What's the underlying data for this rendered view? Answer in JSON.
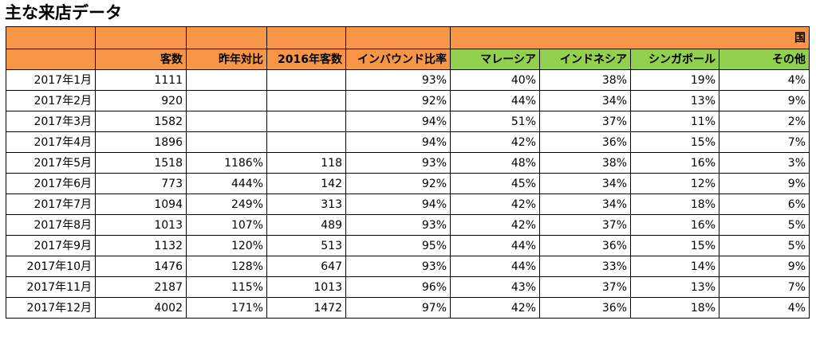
{
  "title": "主な来店データ",
  "colors": {
    "header_orange": "#f79646",
    "header_green": "#92d050"
  },
  "header": {
    "country_group": "国",
    "columns": [
      "",
      "客数",
      "昨年対比",
      "2016年客数",
      "インバウンド比率"
    ],
    "countries": [
      "マレーシア",
      "インドネシア",
      "シンガポール",
      "その他"
    ]
  },
  "rows": [
    [
      "2017年1月",
      "1111",
      "",
      "",
      "93%",
      "40%",
      "38%",
      "19%",
      "4%"
    ],
    [
      "2017年2月",
      "920",
      "",
      "",
      "92%",
      "44%",
      "34%",
      "13%",
      "9%"
    ],
    [
      "2017年3月",
      "1582",
      "",
      "",
      "94%",
      "51%",
      "37%",
      "11%",
      "2%"
    ],
    [
      "2017年4月",
      "1896",
      "",
      "",
      "94%",
      "42%",
      "36%",
      "15%",
      "7%"
    ],
    [
      "2017年5月",
      "1518",
      "1186%",
      "118",
      "93%",
      "48%",
      "38%",
      "16%",
      "3%"
    ],
    [
      "2017年6月",
      "773",
      "444%",
      "142",
      "92%",
      "45%",
      "34%",
      "12%",
      "9%"
    ],
    [
      "2017年7月",
      "1094",
      "249%",
      "313",
      "94%",
      "42%",
      "34%",
      "18%",
      "6%"
    ],
    [
      "2017年8月",
      "1013",
      "107%",
      "489",
      "93%",
      "42%",
      "37%",
      "16%",
      "5%"
    ],
    [
      "2017年9月",
      "1132",
      "120%",
      "513",
      "95%",
      "44%",
      "36%",
      "15%",
      "5%"
    ],
    [
      "2017年10月",
      "1476",
      "128%",
      "647",
      "93%",
      "44%",
      "33%",
      "14%",
      "9%"
    ],
    [
      "2017年11月",
      "2187",
      "115%",
      "1013",
      "96%",
      "43%",
      "37%",
      "13%",
      "7%"
    ],
    [
      "2017年12月",
      "4002",
      "171%",
      "1472",
      "97%",
      "42%",
      "36%",
      "18%",
      "4%"
    ]
  ]
}
